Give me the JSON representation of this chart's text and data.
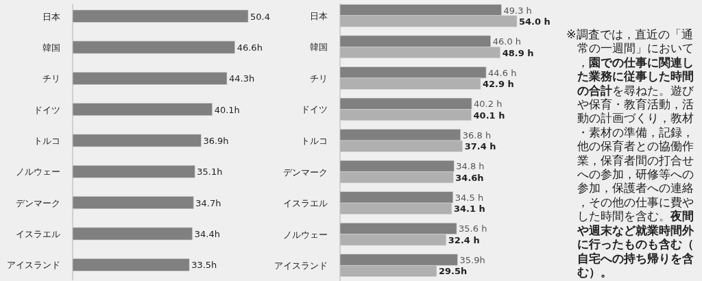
{
  "chart_data": [
    {
      "type": "bar",
      "orientation": "horizontal",
      "categories": [
        "日本",
        "韓国",
        "チリ",
        "ドイツ",
        "トルコ",
        "ノルウェー",
        "デンマーク",
        "イスラエル",
        "アイスランド"
      ],
      "series": [
        {
          "color": "#808080",
          "values": [
            50.4,
            46.6,
            44.3,
            40.1,
            36.9,
            35.1,
            34.7,
            34.4,
            33.5
          ],
          "value_labels": [
            "50.4",
            "46.6h",
            "44.3h",
            "40.1h",
            "36.9h",
            "35.1h",
            "34.7h",
            "34.4h",
            "33.5h"
          ]
        }
      ]
    },
    {
      "type": "bar",
      "orientation": "horizontal",
      "categories": [
        "日本",
        "韓国",
        "チリ",
        "ドイツ",
        "トルコ",
        "デンマーク",
        "イスラエル",
        "ノルウェー",
        "アイスランド"
      ],
      "series": [
        {
          "color": "#808080",
          "values": [
            49.3,
            46.0,
            44.6,
            40.2,
            36.8,
            34.8,
            34.5,
            35.6,
            35.9
          ],
          "value_labels": [
            "49.3 h",
            "46.0 h",
            "44.6 h",
            "40.2 h",
            "36.8 h",
            "34.8 h",
            "34.5 h",
            "35.6 h",
            "35.9h"
          ]
        },
        {
          "color": "#b0b0b0",
          "values": [
            54.0,
            48.9,
            42.9,
            40.1,
            37.4,
            34.6,
            34.1,
            32.4,
            29.5
          ],
          "value_labels": [
            "54.0 h",
            "48.9 h",
            "42.9 h",
            "40.1 h",
            "37.4 h",
            "34.6h",
            "34.1 h",
            "32.4 h",
            "29.5h"
          ]
        }
      ]
    },
    {
      "type": "other",
      "annotations": [
        "※調査では，直近の「通常の一週間」において，",
        "園での仕事に関連した業務に従事した時間の合計",
        "を尋ねた。遊びや保育・教育活動，活動の計画づくり，教材・素材の準備，記録，他の保育者との協働作業，保育者間の打合せへの参加，研修等への参加，保護者への連絡，その他の仕事に費やした時間を含む。",
        "夜間や週末など就業時間外に行ったものも含む（自宅への持ち帰りを含む）。"
      ]
    }
  ]
}
